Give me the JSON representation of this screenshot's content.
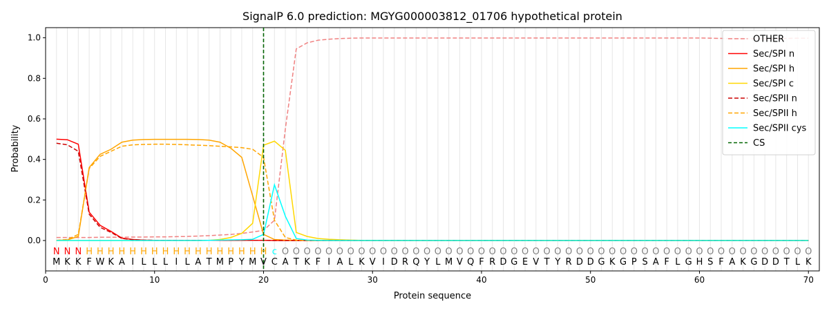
{
  "chart_data": {
    "type": "line",
    "title": "SignalP 6.0 prediction: MGYG000003812_01706 hypothetical protein",
    "xlabel": "Protein sequence",
    "ylabel": "Probability",
    "xlim": [
      0,
      71
    ],
    "ylim": [
      -0.15,
      1.05
    ],
    "xticks": [
      "0",
      "10",
      "20",
      "30",
      "40",
      "50",
      "60",
      "70"
    ],
    "yticks": [
      "0.0",
      "0.2",
      "0.4",
      "0.6",
      "0.8",
      "1.0"
    ],
    "cleavage_site": 20,
    "sequence": [
      "M",
      "K",
      "K",
      "F",
      "W",
      "K",
      "A",
      "I",
      "L",
      "L",
      "L",
      "I",
      "L",
      "A",
      "T",
      "M",
      "P",
      "Y",
      "M",
      "V",
      "C",
      "A",
      "T",
      "K",
      "F",
      "I",
      "A",
      "L",
      "K",
      "V",
      "I",
      "D",
      "R",
      "Q",
      "Y",
      "L",
      "M",
      "V",
      "Q",
      "F",
      "R",
      "D",
      "G",
      "E",
      "V",
      "T",
      "Y",
      "R",
      "D",
      "D",
      "G",
      "K",
      "G",
      "P",
      "S",
      "A",
      "F",
      "L",
      "G",
      "H",
      "S",
      "F",
      "A",
      "K",
      "G",
      "D",
      "D",
      "T",
      "L",
      "K"
    ],
    "region_labels": [
      "N",
      "N",
      "N",
      "H",
      "H",
      "H",
      "H",
      "H",
      "H",
      "H",
      "H",
      "H",
      "H",
      "H",
      "H",
      "H",
      "H",
      "H",
      "H",
      "H",
      "c",
      "O",
      "O",
      "O",
      "O",
      "O",
      "O",
      "O",
      "O",
      "O",
      "O",
      "O",
      "O",
      "O",
      "O",
      "O",
      "O",
      "O",
      "O",
      "O",
      "O",
      "O",
      "O",
      "O",
      "O",
      "O",
      "O",
      "O",
      "O",
      "O",
      "O",
      "O",
      "O",
      "O",
      "O",
      "O",
      "O",
      "O",
      "O",
      "O",
      "O",
      "O",
      "O",
      "O",
      "O",
      "O",
      "O",
      "O",
      "O",
      "O"
    ],
    "region_colors": {
      "N": "#ff0000",
      "H": "#ffa500",
      "c": "#00ffff",
      "O": "#808080"
    },
    "legend_position": "top-right",
    "series": [
      {
        "name": "OTHER",
        "color": "#f08080",
        "dash": true,
        "values": [
          0.015,
          0.015,
          0.015,
          0.015,
          0.016,
          0.016,
          0.016,
          0.017,
          0.017,
          0.018,
          0.018,
          0.019,
          0.02,
          0.022,
          0.024,
          0.027,
          0.03,
          0.035,
          0.042,
          0.05,
          0.1,
          0.55,
          0.945,
          0.975,
          0.988,
          0.993,
          0.996,
          0.998,
          0.999,
          0.999,
          0.999,
          0.999,
          0.999,
          0.999,
          0.999,
          0.999,
          0.999,
          0.999,
          0.999,
          0.999,
          0.999,
          0.999,
          0.999,
          0.999,
          0.999,
          0.999,
          0.999,
          0.999,
          0.999,
          0.999,
          0.999,
          0.999,
          0.999,
          0.999,
          0.999,
          0.999,
          0.999,
          0.999,
          0.999,
          0.999,
          0.998,
          0.997,
          0.996,
          0.996,
          0.996,
          0.996,
          0.996,
          0.997,
          0.998,
          0.998
        ]
      },
      {
        "name": "Sec/SPI n",
        "color": "#ff0000",
        "dash": false,
        "values": [
          0.5,
          0.497,
          0.475,
          0.14,
          0.075,
          0.045,
          0.012,
          0.005,
          0.002,
          0.001,
          0.001,
          0.001,
          0.001,
          0.001,
          0.001,
          0.001,
          0.001,
          0.001,
          0.001,
          0.001,
          0,
          0,
          0,
          0,
          0,
          0,
          0,
          0,
          0,
          0,
          0,
          0,
          0,
          0,
          0,
          0,
          0,
          0,
          0,
          0,
          0,
          0,
          0,
          0,
          0,
          0,
          0,
          0,
          0,
          0,
          0,
          0,
          0,
          0,
          0,
          0,
          0,
          0,
          0,
          0,
          0,
          0,
          0,
          0,
          0,
          0,
          0,
          0,
          0,
          0
        ]
      },
      {
        "name": "Sec/SPI h",
        "color": "#ffa500",
        "dash": false,
        "values": [
          0.001,
          0.003,
          0.02,
          0.36,
          0.425,
          0.45,
          0.485,
          0.495,
          0.498,
          0.499,
          0.499,
          0.499,
          0.499,
          0.498,
          0.495,
          0.485,
          0.455,
          0.41,
          0.22,
          0.03,
          0.005,
          0.002,
          0.001,
          0,
          0,
          0,
          0,
          0,
          0,
          0,
          0,
          0,
          0,
          0,
          0,
          0,
          0,
          0,
          0,
          0,
          0,
          0,
          0,
          0,
          0,
          0,
          0,
          0,
          0,
          0,
          0,
          0,
          0,
          0,
          0,
          0,
          0,
          0,
          0,
          0,
          0,
          0,
          0,
          0,
          0,
          0,
          0,
          0,
          0,
          0
        ]
      },
      {
        "name": "Sec/SPI c",
        "color": "#ffd700",
        "dash": false,
        "values": [
          0,
          0,
          0,
          0,
          0,
          0,
          0,
          0,
          0,
          0,
          0,
          0,
          0,
          0,
          0.001,
          0.005,
          0.015,
          0.035,
          0.085,
          0.47,
          0.49,
          0.445,
          0.04,
          0.02,
          0.01,
          0.006,
          0.004,
          0.002,
          0.001,
          0.001,
          0,
          0,
          0,
          0,
          0,
          0,
          0,
          0,
          0,
          0,
          0,
          0,
          0,
          0,
          0,
          0,
          0,
          0,
          0,
          0,
          0,
          0,
          0,
          0,
          0,
          0,
          0,
          0,
          0,
          0,
          0,
          0,
          0,
          0,
          0,
          0,
          0,
          0,
          0,
          0
        ]
      },
      {
        "name": "Sec/SPII n",
        "color": "#cc0000",
        "dash": true,
        "values": [
          0.48,
          0.472,
          0.44,
          0.13,
          0.065,
          0.04,
          0.01,
          0.004,
          0.002,
          0.001,
          0.001,
          0.001,
          0.001,
          0.001,
          0.001,
          0.001,
          0.001,
          0.001,
          0.001,
          0.001,
          0,
          0,
          0,
          0,
          0,
          0,
          0,
          0,
          0,
          0,
          0,
          0,
          0,
          0,
          0,
          0,
          0,
          0,
          0,
          0,
          0,
          0,
          0,
          0,
          0,
          0,
          0,
          0,
          0,
          0,
          0,
          0,
          0,
          0,
          0,
          0,
          0,
          0,
          0,
          0,
          0,
          0,
          0,
          0,
          0,
          0,
          0,
          0,
          0,
          0
        ]
      },
      {
        "name": "Sec/SPII h",
        "color": "#ffa500",
        "dash": true,
        "values": [
          0.001,
          0.005,
          0.03,
          0.355,
          0.415,
          0.44,
          0.465,
          0.472,
          0.474,
          0.475,
          0.475,
          0.474,
          0.472,
          0.47,
          0.468,
          0.465,
          0.462,
          0.458,
          0.45,
          0.41,
          0.1,
          0.015,
          0.002,
          0.001,
          0,
          0,
          0,
          0,
          0,
          0,
          0,
          0,
          0,
          0,
          0,
          0,
          0,
          0,
          0,
          0,
          0,
          0,
          0,
          0,
          0,
          0,
          0,
          0,
          0,
          0,
          0,
          0,
          0,
          0,
          0,
          0,
          0,
          0,
          0,
          0,
          0,
          0,
          0,
          0,
          0,
          0,
          0,
          0,
          0,
          0
        ]
      },
      {
        "name": "Sec/SPII cys",
        "color": "#00ffff",
        "dash": false,
        "values": [
          0,
          0,
          0,
          0,
          0,
          0,
          0,
          0,
          0,
          0,
          0,
          0,
          0,
          0,
          0.001,
          0.002,
          0.003,
          0.004,
          0.006,
          0.03,
          0.275,
          0.12,
          0.01,
          0.002,
          0.001,
          0,
          0,
          0,
          0,
          0,
          0,
          0,
          0,
          0,
          0,
          0,
          0,
          0,
          0,
          0,
          0,
          0,
          0,
          0,
          0,
          0,
          0,
          0,
          0,
          0,
          0,
          0,
          0,
          0,
          0,
          0,
          0,
          0,
          0,
          0,
          0,
          0,
          0,
          0,
          0,
          0,
          0,
          0,
          0,
          0
        ]
      }
    ],
    "cs_legend": {
      "name": "CS",
      "color": "#006400"
    }
  }
}
